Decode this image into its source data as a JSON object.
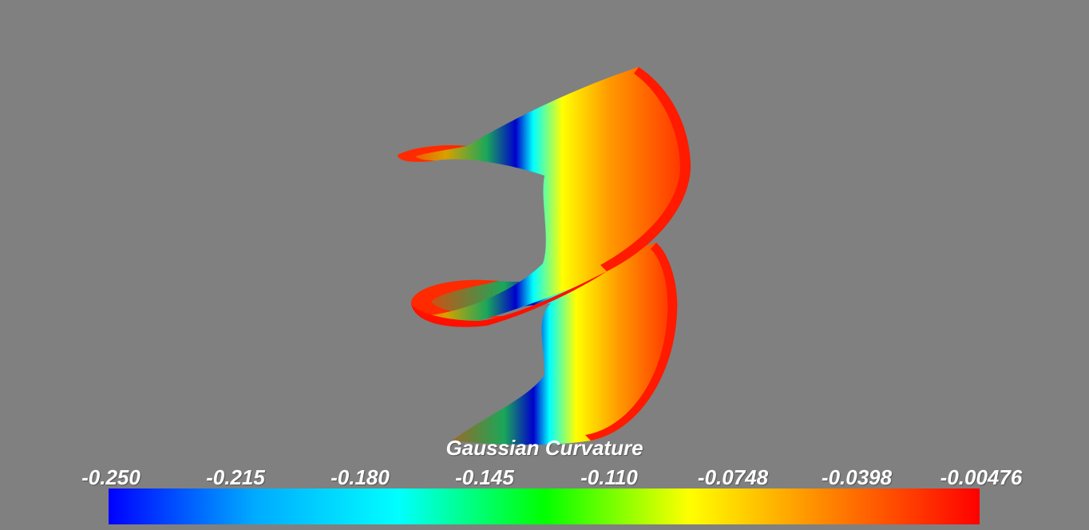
{
  "scalar_bar": {
    "title": "Gaussian Curvature",
    "tick_labels": [
      "-0.250",
      "-0.215",
      "-0.180",
      "-0.145",
      "-0.110",
      "-0.0748",
      "-0.0398",
      "-0.00476"
    ],
    "colormap": [
      "#0000ff",
      "#00aaff",
      "#00ffff",
      "#00ff00",
      "#ffff00",
      "#ff7f00",
      "#ff0000"
    ]
  },
  "background_color": "#808080",
  "surface_colors": {
    "low": "#0000ff",
    "mid": "#ffff00",
    "high": "#ff0000"
  }
}
